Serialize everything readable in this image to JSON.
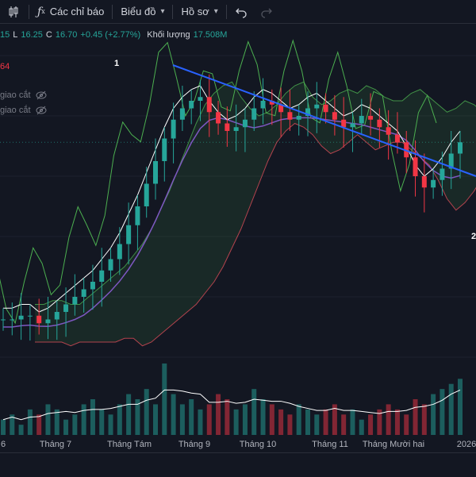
{
  "toolbar": {
    "indicators_label": "Các chỉ báo",
    "chart_type_label": "Biểu đồ",
    "profile_label": "Hồ sơ",
    "icons": [
      "candles-icon",
      "function-icon",
      "undo-icon",
      "redo-icon"
    ]
  },
  "legend": {
    "low_value_fragment": "15",
    "low_label": "L",
    "low_value": "16.25",
    "close_label": "C",
    "close_value": "16.70",
    "change": "+0.45 (+2.77%)",
    "volume_label": "Khối lượng",
    "volume_value": "17.508M"
  },
  "indicators": {
    "red_value_fragment": "64",
    "row1": "giao cắt",
    "row2": "giao cắt"
  },
  "markers": {
    "m1": "1",
    "m2": "2"
  },
  "xaxis": {
    "labels": [
      "6",
      "Tháng 7",
      "Tháng Tám",
      "Tháng 9",
      "Tháng 10",
      "Tháng 11",
      "Tháng Mười hai",
      "2026"
    ]
  },
  "colors": {
    "background": "#131722",
    "up": "#26a69a",
    "down": "#f23645",
    "trendline": "#2962ff",
    "ichimoku_green": "#4caf50",
    "ma_purple": "#7e57c2"
  },
  "chart_data": {
    "type": "candlestick",
    "x_labels": [
      "Tháng 7",
      "Tháng Tám",
      "Tháng 9",
      "Tháng 10",
      "Tháng 11",
      "Tháng Mười hai",
      "2026"
    ],
    "last_close": 16.7,
    "last_low": 16.25,
    "change": 0.45,
    "change_pct": 2.77,
    "last_volume": "17.508M",
    "close_series": [
      12.0,
      12.0,
      12.1,
      12.1,
      11.9,
      12.0,
      12.2,
      12.4,
      12.6,
      12.8,
      13.0,
      13.3,
      13.6,
      14.0,
      14.5,
      15.0,
      15.6,
      16.2,
      16.8,
      17.3,
      17.6,
      17.8,
      17.9,
      17.5,
      17.2,
      17.0,
      17.1,
      17.3,
      17.6,
      17.8,
      17.7,
      17.5,
      17.3,
      17.4,
      17.6,
      17.7,
      17.5,
      17.3,
      17.1,
      17.2,
      17.4,
      17.3,
      17.1,
      16.9,
      16.7,
      16.3,
      15.8,
      15.5,
      15.7,
      16.0,
      16.4,
      16.7
    ],
    "volume_series": [
      3,
      4,
      2,
      5,
      4,
      6,
      5,
      3,
      4,
      6,
      7,
      5,
      4,
      6,
      8,
      7,
      9,
      6,
      14,
      8,
      6,
      7,
      5,
      6,
      8,
      7,
      5,
      6,
      9,
      7,
      6,
      5,
      4,
      6,
      5,
      4,
      5,
      6,
      4,
      5,
      3,
      4,
      5,
      6,
      5,
      4,
      7,
      6,
      8,
      9,
      10,
      11
    ]
  }
}
